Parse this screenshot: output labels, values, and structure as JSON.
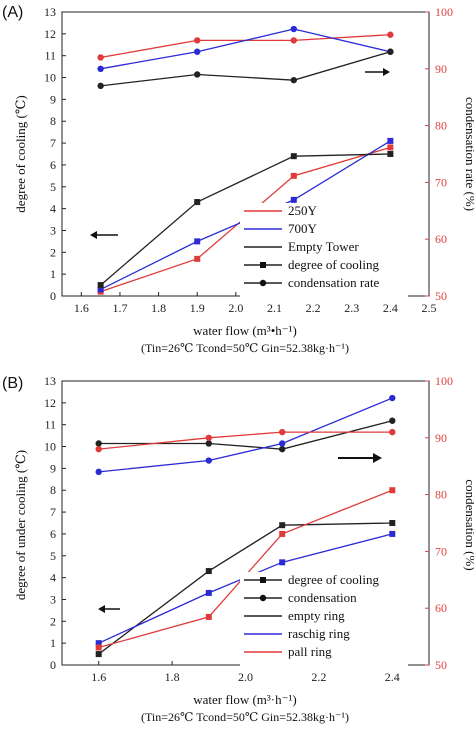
{
  "chart_data": [
    {
      "type": "line",
      "panel_label": "(A)",
      "xlabel": "water flow (m³•h⁻¹)",
      "conditions": "(Tin=26℃ Tcond=50℃ Gin=52.38kg·h⁻¹)",
      "ylabel_left": "degree of cooling (℃)",
      "ylabel_right": "condensation rate (%)",
      "xlim": [
        1.55,
        2.5
      ],
      "x_ticks": [
        "1.6",
        "1.7",
        "1.8",
        "1.9",
        "2.0",
        "2.1",
        "2.2",
        "2.3",
        "2.4",
        "2.5"
      ],
      "ylim_left": [
        0,
        13
      ],
      "y_ticks_left": [
        "0",
        "1",
        "2",
        "3",
        "4",
        "5",
        "6",
        "7",
        "8",
        "9",
        "10",
        "11",
        "12",
        "13"
      ],
      "ylim_right": [
        50,
        100
      ],
      "y_ticks_right": [
        "50",
        "60",
        "70",
        "80",
        "90",
        "100"
      ],
      "legend": [
        "250Y",
        "700Y",
        "Empty Tower",
        "degree of cooling",
        "condensation rate"
      ],
      "series": [
        {
          "name": "250Y",
          "color": "#e03a3a",
          "axis": "left",
          "marker": "square",
          "x": [
            1.65,
            1.9,
            2.15,
            2.4
          ],
          "y": [
            0.2,
            1.7,
            5.5,
            6.8
          ]
        },
        {
          "name": "700Y",
          "color": "#2b2bd6",
          "axis": "left",
          "marker": "square",
          "x": [
            1.65,
            1.9,
            2.15,
            2.4
          ],
          "y": [
            0.3,
            2.5,
            4.4,
            7.1
          ]
        },
        {
          "name": "Empty Tower",
          "color": "#222222",
          "axis": "left",
          "marker": "square",
          "x": [
            1.65,
            1.9,
            2.15,
            2.4
          ],
          "y": [
            0.5,
            4.3,
            6.4,
            6.5
          ]
        },
        {
          "name": "250Y",
          "color": "#e03a3a",
          "axis": "right",
          "marker": "circle",
          "x": [
            1.65,
            1.9,
            2.15,
            2.4
          ],
          "y": [
            92,
            95,
            95,
            96
          ]
        },
        {
          "name": "700Y",
          "color": "#2b2bd6",
          "axis": "right",
          "marker": "circle",
          "x": [
            1.65,
            1.9,
            2.15,
            2.4
          ],
          "y": [
            90,
            93,
            97,
            93
          ]
        },
        {
          "name": "Empty Tower",
          "color": "#222222",
          "axis": "right",
          "marker": "circle",
          "x": [
            1.65,
            1.9,
            2.15,
            2.4
          ],
          "y": [
            87,
            89,
            88,
            93
          ]
        }
      ]
    },
    {
      "type": "line",
      "panel_label": "(B)",
      "xlabel": "water flow (m³·h⁻¹)",
      "conditions": "(Tin=26℃ Tcond=50℃ Gin=52.38kg·h⁻¹)",
      "ylabel_left": "degree of under cooling (℃)",
      "ylabel_right": "condensation (%)",
      "xlim": [
        1.5,
        2.5
      ],
      "x_ticks": [
        "1.6",
        "1.8",
        "2.0",
        "2.2",
        "2.4"
      ],
      "ylim_left": [
        0,
        13
      ],
      "y_ticks_left": [
        "0",
        "1",
        "2",
        "3",
        "4",
        "5",
        "6",
        "7",
        "8",
        "9",
        "10",
        "11",
        "12",
        "13"
      ],
      "ylim_right": [
        50,
        100
      ],
      "y_ticks_right": [
        "50",
        "60",
        "70",
        "80",
        "90",
        "100"
      ],
      "legend": [
        "degree of cooling",
        "condensation",
        "empty ring",
        "raschig ring",
        "pall ring"
      ],
      "series": [
        {
          "name": "empty ring",
          "color": "#222222",
          "axis": "left",
          "marker": "square",
          "x": [
            1.6,
            1.9,
            2.1,
            2.4
          ],
          "y": [
            0.5,
            4.3,
            6.4,
            6.5
          ]
        },
        {
          "name": "raschig ring",
          "color": "#2b2bd6",
          "axis": "left",
          "marker": "square",
          "x": [
            1.6,
            1.9,
            2.1,
            2.4
          ],
          "y": [
            1.0,
            3.3,
            4.7,
            6.0
          ]
        },
        {
          "name": "pall ring",
          "color": "#e03a3a",
          "axis": "left",
          "marker": "square",
          "x": [
            1.6,
            1.9,
            2.1,
            2.4
          ],
          "y": [
            0.8,
            2.2,
            6.0,
            8.0
          ]
        },
        {
          "name": "empty ring",
          "color": "#222222",
          "axis": "right",
          "marker": "circle",
          "x": [
            1.6,
            1.9,
            2.1,
            2.4
          ],
          "y": [
            89,
            89,
            88,
            93
          ]
        },
        {
          "name": "raschig ring",
          "color": "#2b2bd6",
          "axis": "right",
          "marker": "circle",
          "x": [
            1.6,
            1.9,
            2.1,
            2.4
          ],
          "y": [
            84,
            86,
            89,
            97
          ]
        },
        {
          "name": "pall ring",
          "color": "#e03a3a",
          "axis": "right",
          "marker": "circle",
          "x": [
            1.6,
            1.9,
            2.1,
            2.4
          ],
          "y": [
            88,
            90,
            91,
            91
          ]
        }
      ]
    }
  ]
}
